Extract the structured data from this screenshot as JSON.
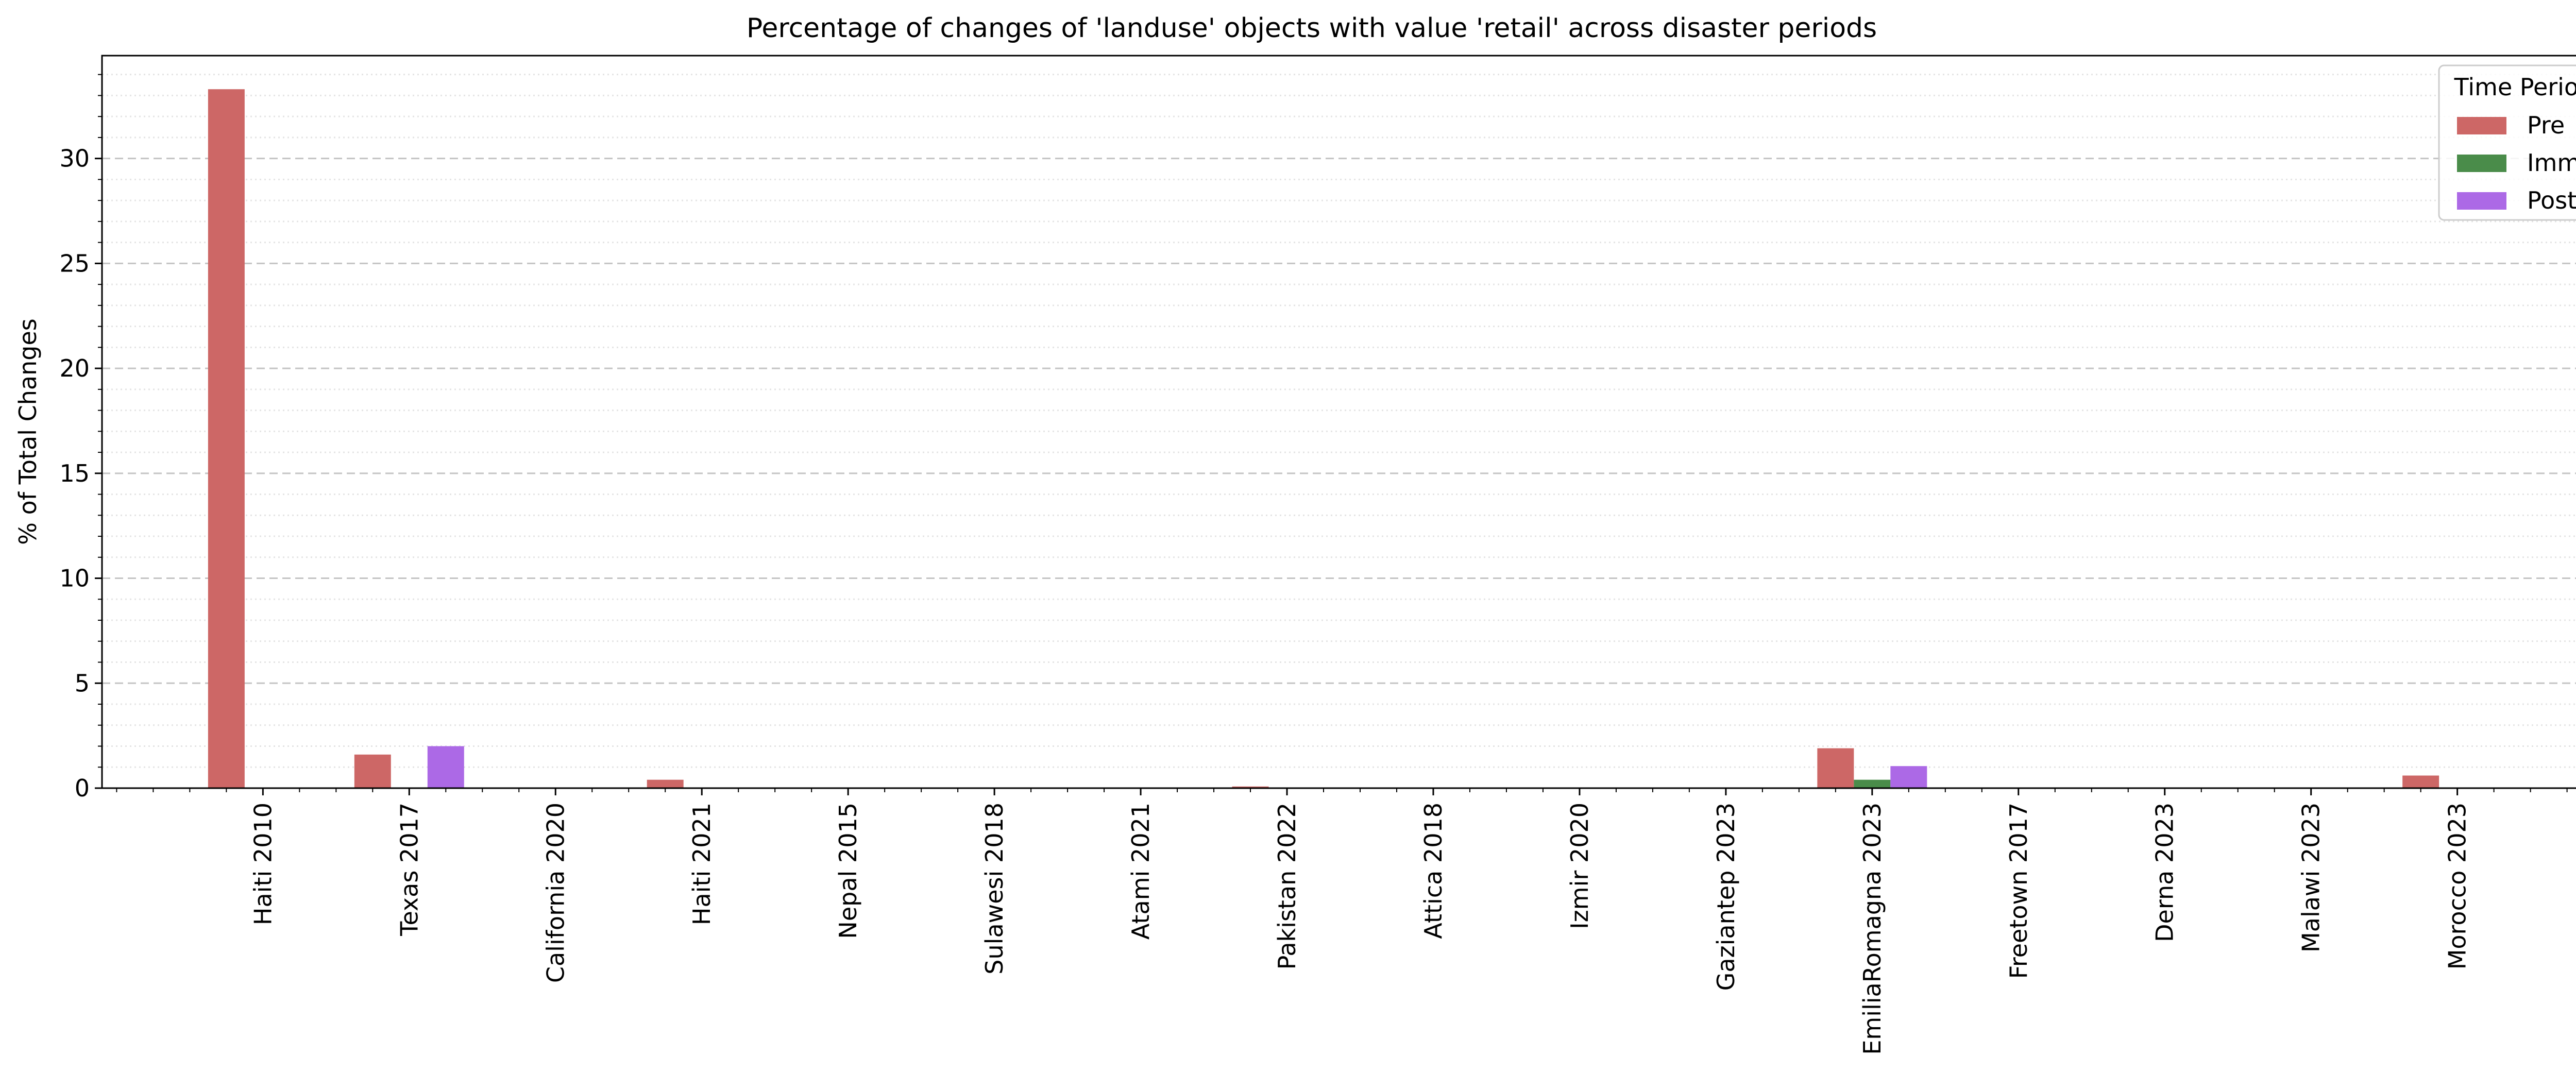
{
  "chart_data": {
    "type": "bar",
    "title": "Percentage of changes of 'landuse' objects with value 'retail' across disaster periods",
    "xlabel": "",
    "ylabel": "% of Total Changes",
    "ylim": [
      0,
      34.9
    ],
    "yticks": [
      0,
      5,
      10,
      15,
      20,
      25,
      30
    ],
    "ytick_labels": [
      "0",
      "5",
      "10",
      "15",
      "20",
      "25",
      "30"
    ],
    "grid": "horizontal dashed major and dotted minor gridlines",
    "legend_title": "Time Period",
    "legend_position": "top-right",
    "categories": [
      "Haiti 2010",
      "Texas 2017",
      "California 2020",
      "Haiti 2021",
      "Nepal 2015",
      "Sulawesi 2018",
      "Atami 2021",
      "Pakistan 2022",
      "Attica 2018",
      "Izmir 2020",
      "Gaziantep 2023",
      "EmiliaRomagna 2023",
      "Freetown 2017",
      "Derna 2023",
      "Malawi 2023",
      "Morocco 2023"
    ],
    "series": [
      {
        "name": "Pre",
        "color": "#cd6766",
        "values": [
          33.3,
          1.6,
          0,
          0.4,
          0,
          0,
          0,
          0.08,
          0,
          0,
          0,
          1.9,
          0,
          0,
          0,
          0.6
        ]
      },
      {
        "name": "Imm",
        "color": "#4a8c4a",
        "values": [
          0,
          0,
          0,
          0,
          0,
          0,
          0,
          0,
          0,
          0,
          0,
          0.4,
          0,
          0,
          0,
          0
        ]
      },
      {
        "name": "Post",
        "color": "#ac69e6",
        "values": [
          0,
          2.0,
          0,
          0,
          0,
          0,
          0,
          0,
          0,
          0,
          0,
          1.05,
          0,
          0,
          0,
          0
        ]
      }
    ]
  }
}
